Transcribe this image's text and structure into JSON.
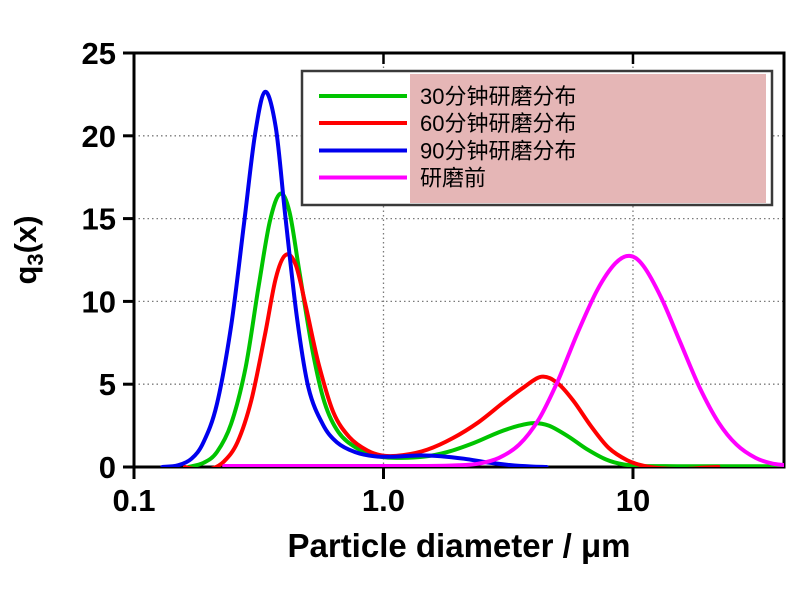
{
  "figure": {
    "background_color": "#ffffff",
    "frame_color": "#000000",
    "grid_color": "#7a7a7a",
    "text_color": "#000000"
  },
  "legend": {
    "border_color": "#3a3a3a",
    "fill_color": "#ffffff",
    "highlight_color": "#e5b6b6",
    "entries": [
      {
        "label": "30分钟研磨分布",
        "color": "#00c400"
      },
      {
        "label": "60分钟研磨分布",
        "color": "#ff0000"
      },
      {
        "label": "90分钟研磨分布",
        "color": "#0000ee"
      },
      {
        "label": "研磨前",
        "color": "#ff00ff"
      }
    ]
  },
  "chart_data": {
    "type": "line",
    "title": "",
    "xlabel": "Particle diameter / μm",
    "ylabel_parts": {
      "base": "q",
      "sub": "3",
      "rest": "(x)"
    },
    "x_scale": "log",
    "xlim": [
      0.1,
      40.3
    ],
    "ylim": [
      0,
      25
    ],
    "x_ticks": [
      {
        "value": 0.1,
        "label": "0.1"
      },
      {
        "value": 1.0,
        "label": "1.0"
      },
      {
        "value": 10,
        "label": "10"
      }
    ],
    "y_ticks": [
      {
        "value": 0,
        "label": "0"
      },
      {
        "value": 5,
        "label": "5"
      },
      {
        "value": 10,
        "label": "10"
      },
      {
        "value": 15,
        "label": "15"
      },
      {
        "value": 20,
        "label": "20"
      },
      {
        "value": 25,
        "label": "25"
      }
    ],
    "grid": true,
    "grid_x_values": [
      1.0,
      10
    ],
    "grid_y_values": [
      5,
      10,
      15,
      20
    ],
    "legend_position": "top-right-inside",
    "series": [
      {
        "name": "30分钟研磨分布",
        "color": "#00c400",
        "peak": {
          "x": 0.385,
          "y": 16.5
        },
        "points": [
          [
            0.165,
            0
          ],
          [
            0.19,
            0.25
          ],
          [
            0.215,
            0.9
          ],
          [
            0.245,
            2.6
          ],
          [
            0.28,
            6
          ],
          [
            0.315,
            10.8
          ],
          [
            0.35,
            14.8
          ],
          [
            0.385,
            16.5
          ],
          [
            0.42,
            15.4
          ],
          [
            0.46,
            11.8
          ],
          [
            0.52,
            7
          ],
          [
            0.58,
            3.9
          ],
          [
            0.66,
            2.1
          ],
          [
            0.78,
            1.15
          ],
          [
            0.95,
            0.65
          ],
          [
            1.15,
            0.55
          ],
          [
            1.45,
            0.62
          ],
          [
            1.8,
            0.9
          ],
          [
            2.3,
            1.45
          ],
          [
            2.9,
            2.1
          ],
          [
            3.5,
            2.5
          ],
          [
            4.0,
            2.65
          ],
          [
            4.6,
            2.5
          ],
          [
            5.5,
            1.85
          ],
          [
            6.5,
            1.1
          ],
          [
            7.8,
            0.45
          ],
          [
            9.2,
            0.15
          ],
          [
            11,
            0.06
          ],
          [
            15,
            0.05
          ],
          [
            25,
            0.05
          ],
          [
            40,
            0.05
          ]
        ]
      },
      {
        "name": "60分钟研磨分布",
        "color": "#ff0000",
        "peak": {
          "x": 0.405,
          "y": 12.8
        },
        "points": [
          [
            0.16,
            0
          ],
          [
            0.18,
            -0.15
          ],
          [
            0.205,
            -0.1
          ],
          [
            0.23,
            0.35
          ],
          [
            0.26,
            1.5
          ],
          [
            0.295,
            4
          ],
          [
            0.335,
            8
          ],
          [
            0.37,
            11.4
          ],
          [
            0.405,
            12.8
          ],
          [
            0.445,
            12.2
          ],
          [
            0.49,
            9.6
          ],
          [
            0.55,
            6.2
          ],
          [
            0.63,
            3.3
          ],
          [
            0.73,
            1.8
          ],
          [
            0.86,
            1.0
          ],
          [
            1.0,
            0.68
          ],
          [
            1.2,
            0.72
          ],
          [
            1.5,
            1.05
          ],
          [
            1.9,
            1.75
          ],
          [
            2.4,
            2.7
          ],
          [
            3.0,
            3.85
          ],
          [
            3.6,
            4.75
          ],
          [
            4.3,
            5.45
          ],
          [
            5.0,
            5.05
          ],
          [
            5.8,
            3.95
          ],
          [
            6.8,
            2.45
          ],
          [
            8.0,
            1.15
          ],
          [
            9.5,
            0.4
          ],
          [
            11,
            0.08
          ],
          [
            13,
            -0.08
          ],
          [
            16,
            -0.12
          ],
          [
            19,
            -0.05
          ],
          [
            22,
            0
          ]
        ]
      },
      {
        "name": "90分钟研磨分布",
        "color": "#0000ee",
        "peak": {
          "x": 0.335,
          "y": 22.65
        },
        "points": [
          [
            0.13,
            0
          ],
          [
            0.15,
            0.1
          ],
          [
            0.17,
            0.5
          ],
          [
            0.19,
            1.5
          ],
          [
            0.215,
            3.8
          ],
          [
            0.245,
            8.5
          ],
          [
            0.275,
            14.5
          ],
          [
            0.305,
            20
          ],
          [
            0.335,
            22.65
          ],
          [
            0.37,
            20.5
          ],
          [
            0.405,
            15
          ],
          [
            0.45,
            9
          ],
          [
            0.5,
            4.8
          ],
          [
            0.57,
            2.6
          ],
          [
            0.65,
            1.5
          ],
          [
            0.77,
            0.9
          ],
          [
            0.92,
            0.65
          ],
          [
            1.1,
            0.62
          ],
          [
            1.4,
            0.7
          ],
          [
            1.7,
            0.65
          ],
          [
            2.1,
            0.5
          ],
          [
            2.6,
            0.28
          ],
          [
            3.2,
            0.12
          ],
          [
            3.9,
            0.03
          ],
          [
            4.5,
            0
          ]
        ]
      },
      {
        "name": "研磨前",
        "color": "#ff00ff",
        "peak": {
          "x": 9.7,
          "y": 12.75
        },
        "points": [
          [
            0.23,
            0.06
          ],
          [
            0.6,
            0.06
          ],
          [
            1.0,
            0.06
          ],
          [
            1.5,
            0.06
          ],
          [
            2.0,
            0.1
          ],
          [
            2.4,
            0.2
          ],
          [
            2.9,
            0.55
          ],
          [
            3.5,
            1.35
          ],
          [
            4.2,
            2.9
          ],
          [
            5.0,
            5.2
          ],
          [
            6.0,
            8.1
          ],
          [
            7.2,
            10.7
          ],
          [
            8.5,
            12.3
          ],
          [
            9.7,
            12.75
          ],
          [
            11,
            12.15
          ],
          [
            13,
            10.2
          ],
          [
            15.5,
            7.5
          ],
          [
            18.5,
            4.8
          ],
          [
            22,
            2.7
          ],
          [
            26,
            1.35
          ],
          [
            31,
            0.55
          ],
          [
            36,
            0.22
          ],
          [
            40,
            0.12
          ]
        ]
      }
    ]
  }
}
